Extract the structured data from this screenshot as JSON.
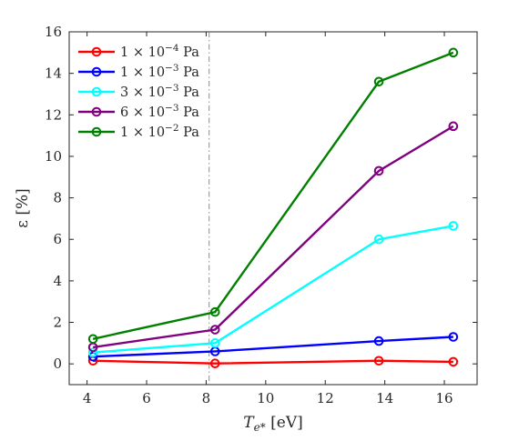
{
  "chart_data": {
    "type": "line",
    "xlabel": "T",
    "xlabel_sub": "e*",
    "xlabel_unit": " [eV]",
    "ylabel": "ε [%]",
    "xlim": [
      3.4,
      17.1
    ],
    "ylim": [
      -1,
      16
    ],
    "xticks": [
      4,
      6,
      8,
      10,
      12,
      14,
      16
    ],
    "yticks": [
      0,
      2,
      4,
      6,
      8,
      10,
      12,
      14,
      16
    ],
    "vline_x": 8.1,
    "grid": false,
    "legend_position": "top-left",
    "x": [
      4.2,
      8.3,
      13.8,
      16.3
    ],
    "series": [
      {
        "name": "1 × 10⁻⁴ Pa",
        "name_parts": [
          "1 × 10",
          "−4",
          " Pa"
        ],
        "color": "#ff0000",
        "values": [
          0.15,
          0.02,
          0.15,
          0.1
        ]
      },
      {
        "name": "1 × 10⁻³ Pa",
        "name_parts": [
          "1 × 10",
          "−3",
          " Pa"
        ],
        "color": "#0000ff",
        "values": [
          0.35,
          0.6,
          1.1,
          1.3
        ]
      },
      {
        "name": "3 × 10⁻³ Pa",
        "name_parts": [
          "3 × 10",
          "−3",
          " Pa"
        ],
        "color": "#00ffff",
        "values": [
          0.55,
          1.0,
          6.0,
          6.65
        ]
      },
      {
        "name": "6 × 10⁻³ Pa",
        "name_parts": [
          "6 × 10",
          "−3",
          " Pa"
        ],
        "color": "#800080",
        "values": [
          0.8,
          1.65,
          9.3,
          11.45
        ]
      },
      {
        "name": "1 × 10⁻² Pa",
        "name_parts": [
          "1 × 10",
          "−2",
          " Pa"
        ],
        "color": "#008000",
        "values": [
          1.2,
          2.5,
          13.6,
          15.0
        ]
      }
    ]
  }
}
